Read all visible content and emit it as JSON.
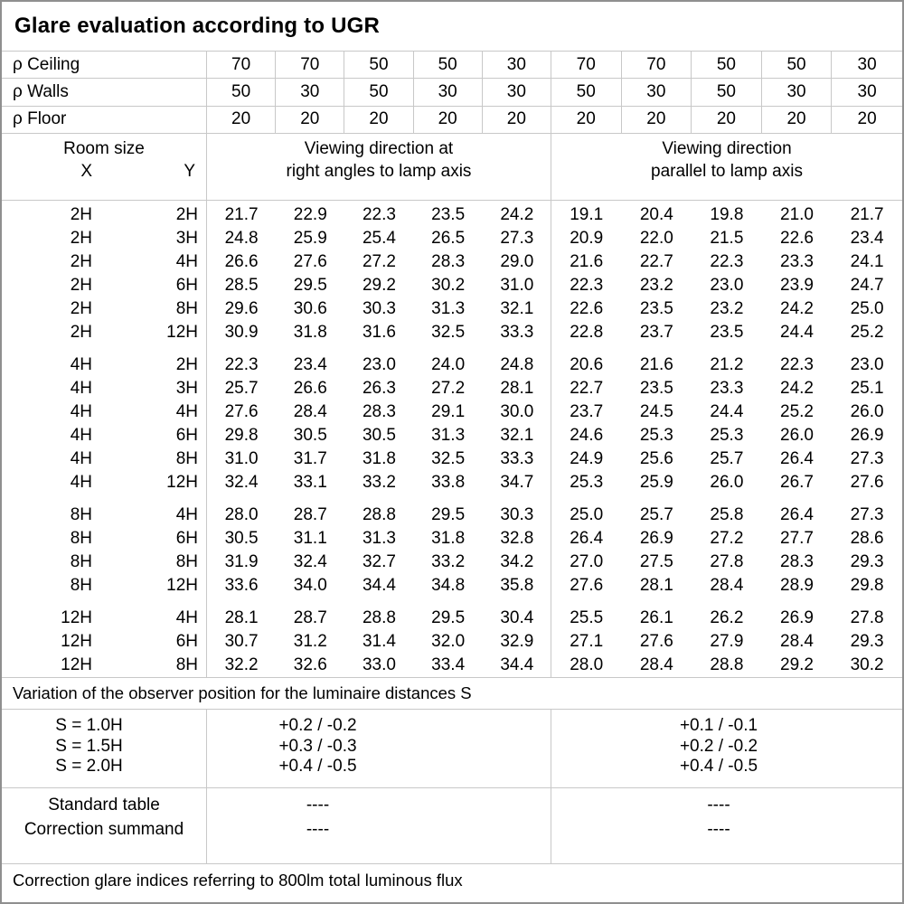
{
  "title": "Glare evaluation according to UGR",
  "reflectances": {
    "rows": [
      {
        "label": "ρ Ceiling",
        "values": [
          "70",
          "70",
          "50",
          "50",
          "30",
          "70",
          "70",
          "50",
          "50",
          "30"
        ]
      },
      {
        "label": "ρ Walls",
        "values": [
          "50",
          "30",
          "50",
          "30",
          "30",
          "50",
          "30",
          "50",
          "30",
          "30"
        ]
      },
      {
        "label": "ρ Floor",
        "values": [
          "20",
          "20",
          "20",
          "20",
          "20",
          "20",
          "20",
          "20",
          "20",
          "20"
        ]
      }
    ]
  },
  "header": {
    "room_size": "Room size",
    "x": "X",
    "y": "Y",
    "left_group_line1": "Viewing direction at",
    "left_group_line2": "right angles to lamp axis",
    "right_group_line1": "Viewing direction",
    "right_group_line2": "parallel to lamp axis"
  },
  "ugr_blocks": [
    {
      "rows": [
        {
          "x": "2H",
          "y": "2H",
          "values": [
            "21.7",
            "22.9",
            "22.3",
            "23.5",
            "24.2",
            "19.1",
            "20.4",
            "19.8",
            "21.0",
            "21.7"
          ]
        },
        {
          "x": "2H",
          "y": "3H",
          "values": [
            "24.8",
            "25.9",
            "25.4",
            "26.5",
            "27.3",
            "20.9",
            "22.0",
            "21.5",
            "22.6",
            "23.4"
          ]
        },
        {
          "x": "2H",
          "y": "4H",
          "values": [
            "26.6",
            "27.6",
            "27.2",
            "28.3",
            "29.0",
            "21.6",
            "22.7",
            "22.3",
            "23.3",
            "24.1"
          ]
        },
        {
          "x": "2H",
          "y": "6H",
          "values": [
            "28.5",
            "29.5",
            "29.2",
            "30.2",
            "31.0",
            "22.3",
            "23.2",
            "23.0",
            "23.9",
            "24.7"
          ]
        },
        {
          "x": "2H",
          "y": "8H",
          "values": [
            "29.6",
            "30.6",
            "30.3",
            "31.3",
            "32.1",
            "22.6",
            "23.5",
            "23.2",
            "24.2",
            "25.0"
          ]
        },
        {
          "x": "2H",
          "y": "12H",
          "values": [
            "30.9",
            "31.8",
            "31.6",
            "32.5",
            "33.3",
            "22.8",
            "23.7",
            "23.5",
            "24.4",
            "25.2"
          ]
        }
      ]
    },
    {
      "rows": [
        {
          "x": "4H",
          "y": "2H",
          "values": [
            "22.3",
            "23.4",
            "23.0",
            "24.0",
            "24.8",
            "20.6",
            "21.6",
            "21.2",
            "22.3",
            "23.0"
          ]
        },
        {
          "x": "4H",
          "y": "3H",
          "values": [
            "25.7",
            "26.6",
            "26.3",
            "27.2",
            "28.1",
            "22.7",
            "23.5",
            "23.3",
            "24.2",
            "25.1"
          ]
        },
        {
          "x": "4H",
          "y": "4H",
          "values": [
            "27.6",
            "28.4",
            "28.3",
            "29.1",
            "30.0",
            "23.7",
            "24.5",
            "24.4",
            "25.2",
            "26.0"
          ]
        },
        {
          "x": "4H",
          "y": "6H",
          "values": [
            "29.8",
            "30.5",
            "30.5",
            "31.3",
            "32.1",
            "24.6",
            "25.3",
            "25.3",
            "26.0",
            "26.9"
          ]
        },
        {
          "x": "4H",
          "y": "8H",
          "values": [
            "31.0",
            "31.7",
            "31.8",
            "32.5",
            "33.3",
            "24.9",
            "25.6",
            "25.7",
            "26.4",
            "27.3"
          ]
        },
        {
          "x": "4H",
          "y": "12H",
          "values": [
            "32.4",
            "33.1",
            "33.2",
            "33.8",
            "34.7",
            "25.3",
            "25.9",
            "26.0",
            "26.7",
            "27.6"
          ]
        }
      ]
    },
    {
      "rows": [
        {
          "x": "8H",
          "y": "4H",
          "values": [
            "28.0",
            "28.7",
            "28.8",
            "29.5",
            "30.3",
            "25.0",
            "25.7",
            "25.8",
            "26.4",
            "27.3"
          ]
        },
        {
          "x": "8H",
          "y": "6H",
          "values": [
            "30.5",
            "31.1",
            "31.3",
            "31.8",
            "32.8",
            "26.4",
            "26.9",
            "27.2",
            "27.7",
            "28.6"
          ]
        },
        {
          "x": "8H",
          "y": "8H",
          "values": [
            "31.9",
            "32.4",
            "32.7",
            "33.2",
            "34.2",
            "27.0",
            "27.5",
            "27.8",
            "28.3",
            "29.3"
          ]
        },
        {
          "x": "8H",
          "y": "12H",
          "values": [
            "33.6",
            "34.0",
            "34.4",
            "34.8",
            "35.8",
            "27.6",
            "28.1",
            "28.4",
            "28.9",
            "29.8"
          ]
        }
      ]
    },
    {
      "rows": [
        {
          "x": "12H",
          "y": "4H",
          "values": [
            "28.1",
            "28.7",
            "28.8",
            "29.5",
            "30.4",
            "25.5",
            "26.1",
            "26.2",
            "26.9",
            "27.8"
          ]
        },
        {
          "x": "12H",
          "y": "6H",
          "values": [
            "30.7",
            "31.2",
            "31.4",
            "32.0",
            "32.9",
            "27.1",
            "27.6",
            "27.9",
            "28.4",
            "29.3"
          ]
        },
        {
          "x": "12H",
          "y": "8H",
          "values": [
            "32.2",
            "32.6",
            "33.0",
            "33.4",
            "34.4",
            "28.0",
            "28.4",
            "28.8",
            "29.2",
            "30.2"
          ]
        }
      ]
    }
  ],
  "variation_note": "Variation of the observer position for the luminaire distances S",
  "observer_variation": {
    "labels": [
      "S = 1.0H",
      "S = 1.5H",
      "S = 2.0H"
    ],
    "right_angles": [
      "+0.2 / -0.2",
      "+0.3 / -0.3",
      "+0.4 / -0.5"
    ],
    "parallel": [
      "+0.1 / -0.1",
      "+0.2 / -0.2",
      "+0.4 / -0.5"
    ]
  },
  "correction": {
    "rows": [
      {
        "label": "Standard table",
        "right_angles": "----",
        "parallel": "----"
      },
      {
        "label": "Correction summand",
        "right_angles": "----",
        "parallel": "----"
      }
    ]
  },
  "footer": "Correction glare indices referring to 800lm total luminous flux",
  "colors": {
    "grid_line": "#c8c8c8",
    "outer_border": "#8f8f8f",
    "background": "#ffffff",
    "text": "#000000"
  }
}
